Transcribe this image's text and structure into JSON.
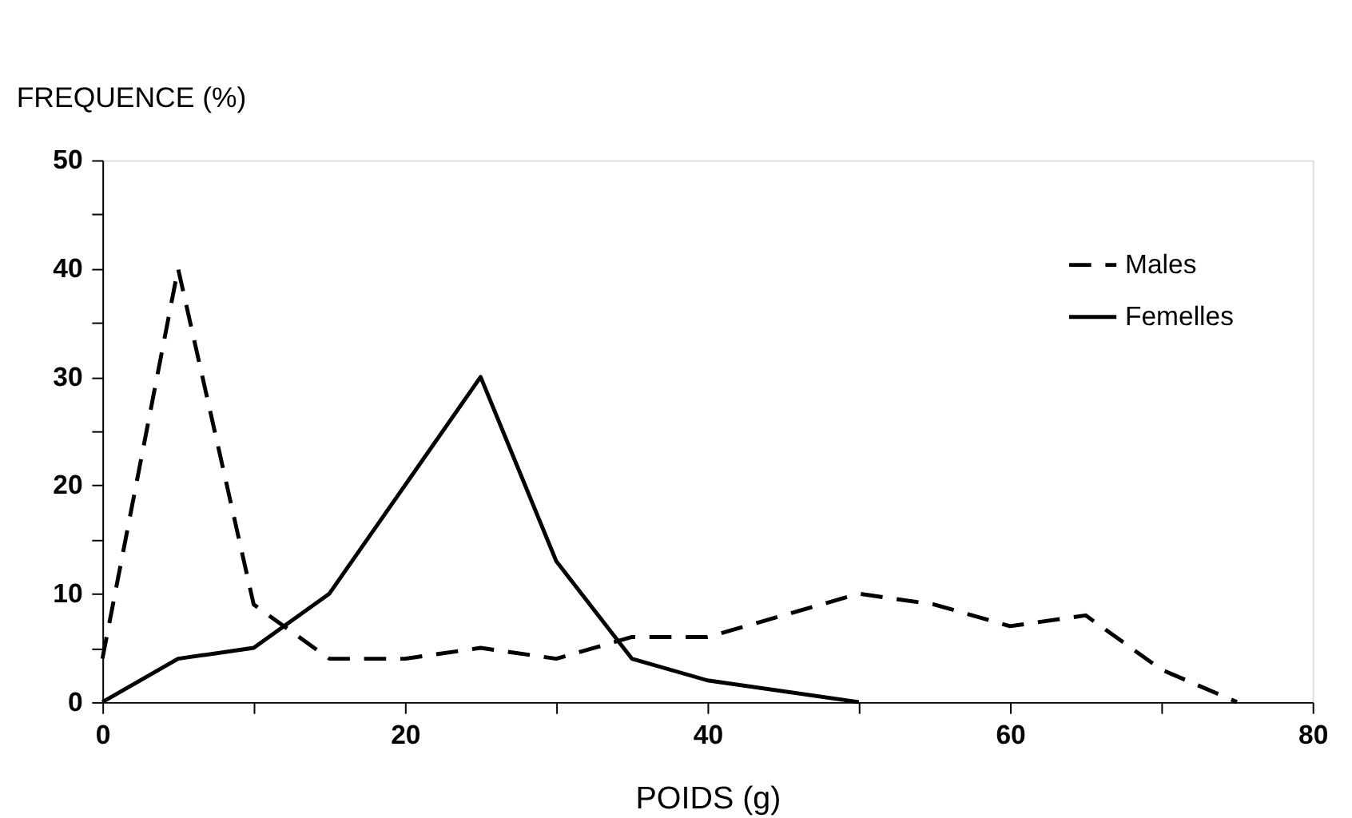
{
  "chart_data": {
    "type": "line",
    "xlabel": "POIDS  (g)",
    "ylabel": "FREQUENCE (%)",
    "xlim": [
      0,
      80
    ],
    "ylim": [
      0,
      50
    ],
    "xticks": [
      0,
      {
        "value": 10,
        "label": null
      },
      20,
      {
        "value": 30,
        "label": null
      },
      40,
      {
        "value": 50,
        "label": null
      },
      60,
      {
        "value": 70,
        "label": null
      },
      80
    ],
    "yticks": [
      0,
      {
        "value": 5,
        "label": null
      },
      10,
      {
        "value": 15,
        "label": null
      },
      20,
      {
        "value": 25,
        "label": null
      },
      30,
      {
        "value": 35,
        "label": null
      },
      40,
      {
        "value": 45,
        "label": null
      },
      50
    ],
    "grid": false,
    "legend": "top right",
    "series": [
      {
        "name": "Males",
        "color": "#000000",
        "line_style": "dashed",
        "x": [
          0,
          5,
          10,
          15,
          20,
          25,
          30,
          35,
          40,
          50,
          55,
          60,
          65,
          70,
          75
        ],
        "values": [
          4,
          40,
          9,
          4,
          4,
          5,
          4,
          6,
          6,
          10,
          9,
          7,
          8,
          3,
          0
        ]
      },
      {
        "name": "Femelles",
        "color": "#000000",
        "line_style": "solid",
        "x": [
          0,
          5,
          10,
          15,
          25,
          30,
          35,
          40,
          50
        ],
        "values": [
          0,
          4,
          5,
          10,
          30,
          13,
          4,
          2,
          0
        ]
      }
    ]
  }
}
